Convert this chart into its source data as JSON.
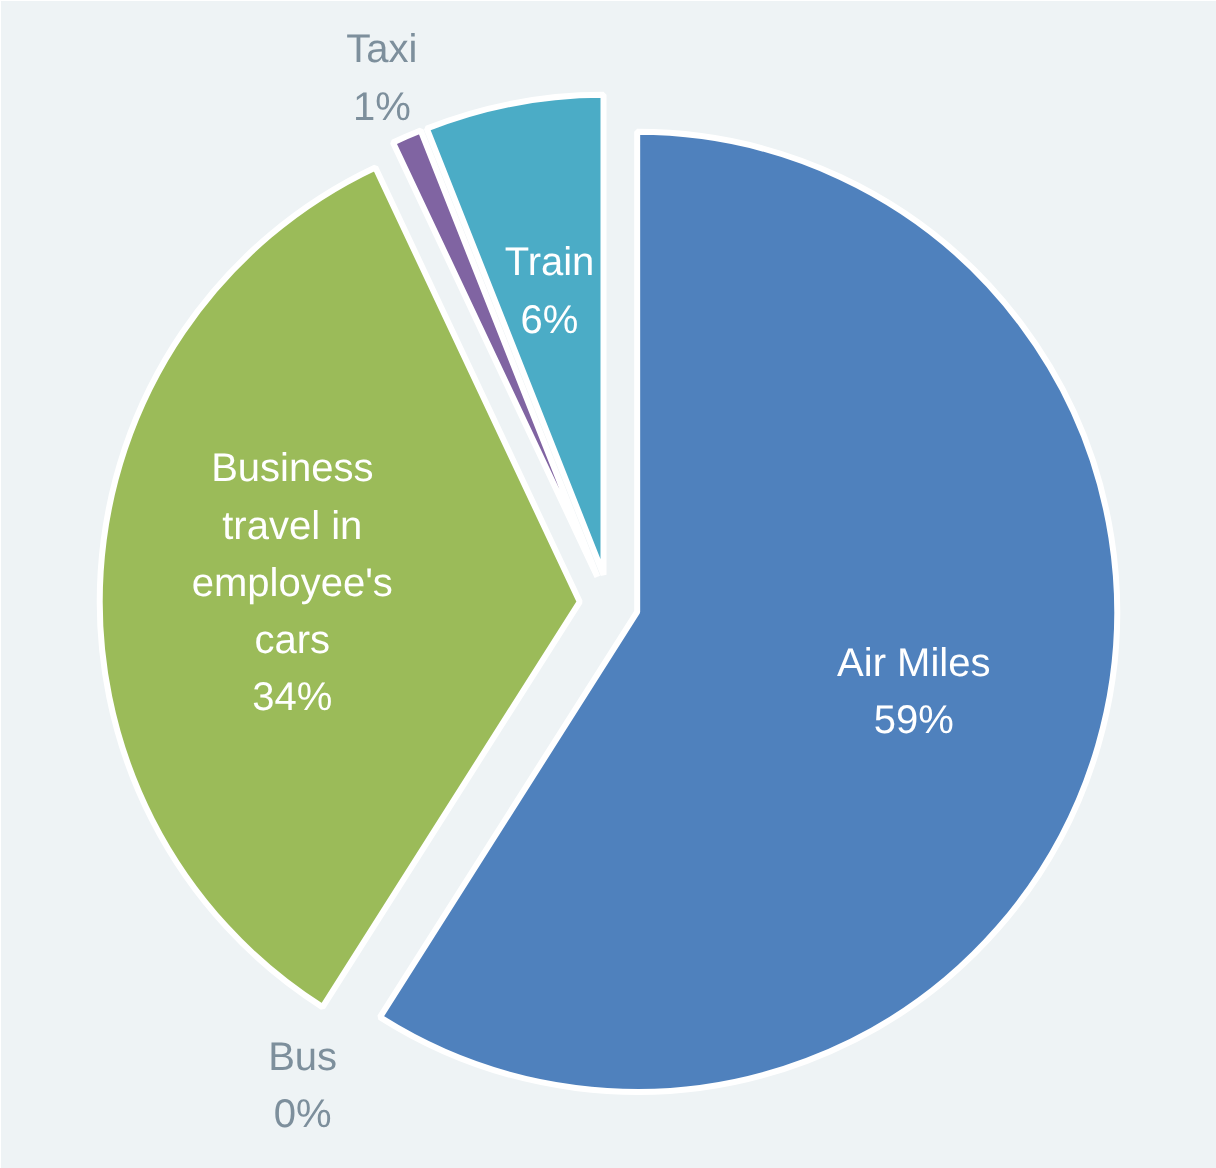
{
  "chart_data": {
    "type": "pie",
    "categories": [
      "Air Miles",
      "Bus",
      "Business travel in employee's cars",
      "Taxi",
      "Train"
    ],
    "values": [
      59,
      0,
      34,
      1,
      6
    ],
    "colors": [
      "#4f81bd",
      "#c0504d",
      "#9bbb59",
      "#8064a2",
      "#4bacc6"
    ],
    "value_labels": [
      "59%",
      "0%",
      "34%",
      "1%",
      "6%"
    ],
    "legend": false
  }
}
